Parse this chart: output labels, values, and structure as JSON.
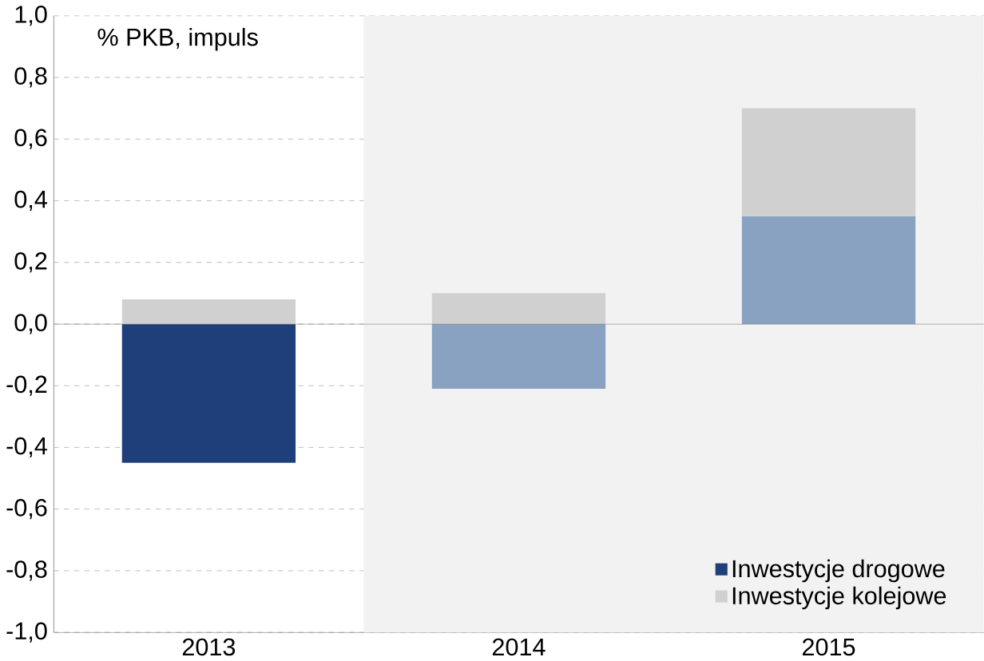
{
  "chart_data": {
    "type": "bar",
    "stacked": true,
    "categories": [
      "2013",
      "2014",
      "2015"
    ],
    "series": [
      {
        "name": "Inwestycje drogowe",
        "color": "#1f3f7a",
        "colors": [
          "#1f3f7a",
          "#8aa2c2",
          "#8aa2c2"
        ],
        "values": [
          -0.45,
          -0.21,
          0.35
        ]
      },
      {
        "name": "Inwestycje kolejowe",
        "color": "#d0d0d0",
        "values": [
          0.08,
          0.1,
          0.35
        ]
      }
    ],
    "ylim": [
      -1.0,
      1.0
    ],
    "yticks": [
      {
        "value": -1.0,
        "label": "-1,0"
      },
      {
        "value": -0.8,
        "label": "-0,8"
      },
      {
        "value": -0.6,
        "label": "-0,6"
      },
      {
        "value": -0.4,
        "label": "-0,4"
      },
      {
        "value": -0.2,
        "label": "-0,2"
      },
      {
        "value": 0.0,
        "label": "0,0"
      },
      {
        "value": 0.2,
        "label": "0,2"
      },
      {
        "value": 0.4,
        "label": "0,4"
      },
      {
        "value": 0.6,
        "label": "0,6"
      },
      {
        "value": 0.8,
        "label": "0,8"
      },
      {
        "value": 1.0,
        "label": "1,0"
      }
    ],
    "grid": "y",
    "legend": "bottom right",
    "bands": [
      {
        "axis": "x",
        "from": "2014",
        "to": "2015",
        "color": "#f2f2f2"
      }
    ],
    "annotations": [
      "% PKB, impuls"
    ]
  }
}
